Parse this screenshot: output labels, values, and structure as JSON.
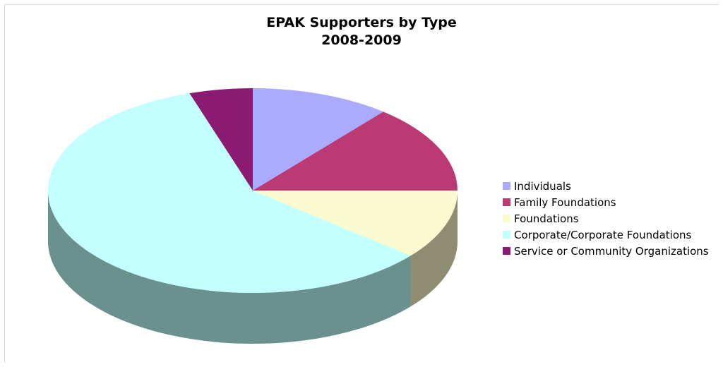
{
  "chart_data": {
    "type": "pie",
    "title": "EPAK Supporters by Type",
    "subtitle": "2008-2009",
    "three_d": true,
    "legend_position": "right",
    "start_angle_deg": 90,
    "direction": "clockwise",
    "slices": [
      {
        "label": "Individuals",
        "value": 11,
        "color": "#aaaaff",
        "side_color": "#7b7bb8"
      },
      {
        "label": "Family Foundations",
        "value": 14,
        "color": "#bb3a74",
        "side_color": "#862a53"
      },
      {
        "label": "Foundations",
        "value": 11,
        "color": "#fafad0",
        "side_color": "#8e8d72"
      },
      {
        "label": "Corporate/Corporate Foundations",
        "value": 59,
        "color": "#c4ffff",
        "side_color": "#6b918f"
      },
      {
        "label": "Service or Community Organizations",
        "value": 5,
        "color": "#8a1a72",
        "side_color": "#5e1250"
      }
    ]
  }
}
